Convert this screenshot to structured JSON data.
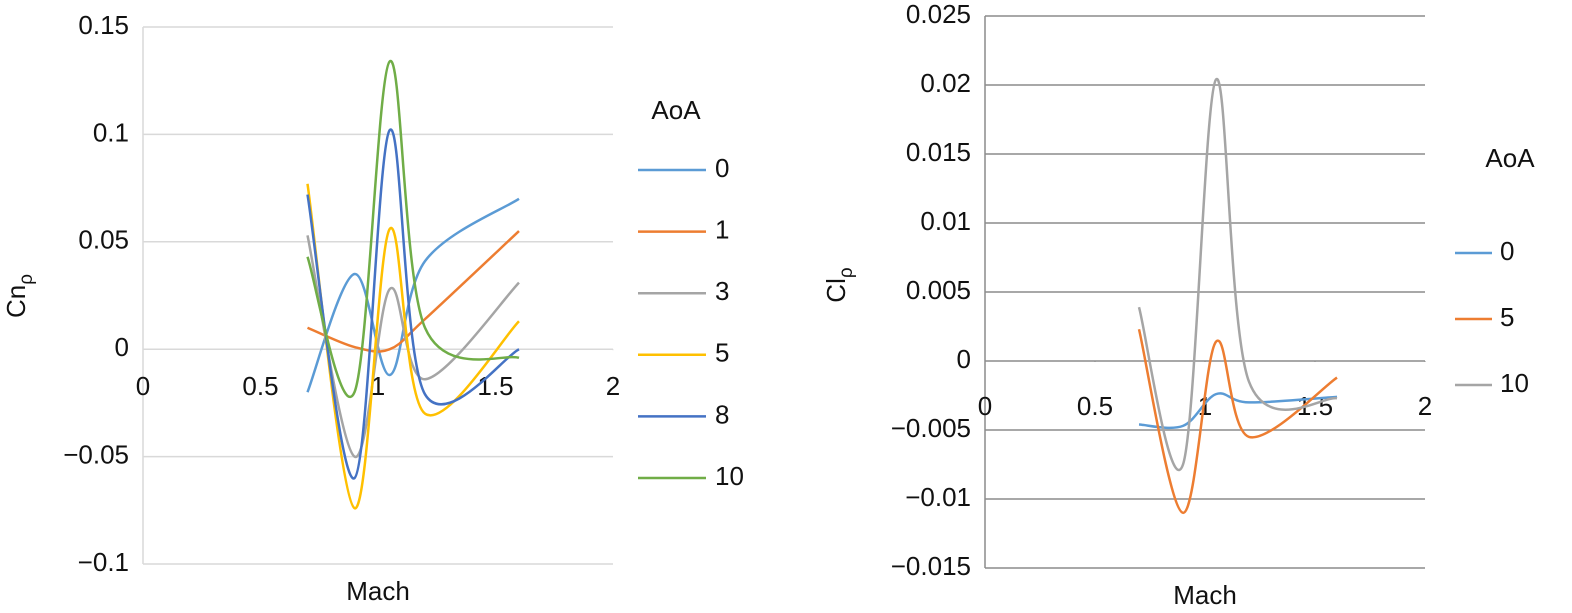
{
  "chart_data": [
    {
      "type": "line",
      "xlabel": "Mach",
      "ylabel": "Cnρ",
      "legend_title": "AoA",
      "x": [
        0.7,
        0.9,
        1.05,
        1.2,
        1.6
      ],
      "xlim": [
        0,
        2
      ],
      "xticks": [
        0,
        0.5,
        1,
        1.5,
        2
      ],
      "ylim": [
        -0.1,
        0.15
      ],
      "yticks": [
        {
          "value": -0.1,
          "label": "−0.1"
        },
        {
          "value": -0.05,
          "label": "−0.05"
        },
        0,
        0.05,
        0.1,
        0.15
      ],
      "grid": true,
      "legend": "right",
      "series": [
        {
          "name": "0",
          "color": "#5b9bd5",
          "values": [
            -0.02,
            0.035,
            -0.012,
            0.041,
            0.07
          ]
        },
        {
          "name": "1",
          "color": "#ed7d31",
          "values": [
            0.01,
            0.001,
            0.0,
            0.014,
            0.055
          ]
        },
        {
          "name": "3",
          "color": "#a5a5a5",
          "values": [
            0.053,
            -0.05,
            0.028,
            -0.014,
            0.031
          ]
        },
        {
          "name": "5",
          "color": "#ffc000",
          "values": [
            0.077,
            -0.074,
            0.056,
            -0.03,
            0.013
          ]
        },
        {
          "name": "8",
          "color": "#4472c4",
          "values": [
            0.072,
            -0.06,
            0.102,
            -0.021,
            0.0
          ]
        },
        {
          "name": "10",
          "color": "#70ad47",
          "values": [
            0.043,
            -0.02,
            0.134,
            0.01,
            -0.004
          ]
        }
      ]
    },
    {
      "type": "line",
      "xlabel": "Mach",
      "ylabel": "Clρ",
      "legend_title": "AoA",
      "x": [
        0.7,
        0.9,
        1.05,
        1.2,
        1.6
      ],
      "xlim": [
        0,
        2
      ],
      "xticks": [
        0,
        0.5,
        1,
        1.5,
        2
      ],
      "ylim": [
        -0.015,
        0.025
      ],
      "yticks": [
        {
          "value": -0.015,
          "label": "−0.015"
        },
        {
          "value": -0.01,
          "label": "−0.01"
        },
        {
          "value": -0.005,
          "label": "−0.005"
        },
        0,
        0.005,
        0.01,
        0.015,
        0.02,
        0.025
      ],
      "grid": true,
      "legend": "right",
      "series": [
        {
          "name": "0",
          "color": "#5b9bd5",
          "values": [
            -0.0046,
            -0.0047,
            -0.0024,
            -0.003,
            -0.0026
          ]
        },
        {
          "name": "5",
          "color": "#ed7d31",
          "values": [
            0.0023,
            -0.011,
            0.0014,
            -0.0055,
            -0.0012
          ]
        },
        {
          "name": "10",
          "color": "#a5a5a5",
          "values": [
            0.0039,
            -0.0075,
            0.0204,
            -0.0015,
            -0.0027
          ]
        }
      ]
    }
  ]
}
